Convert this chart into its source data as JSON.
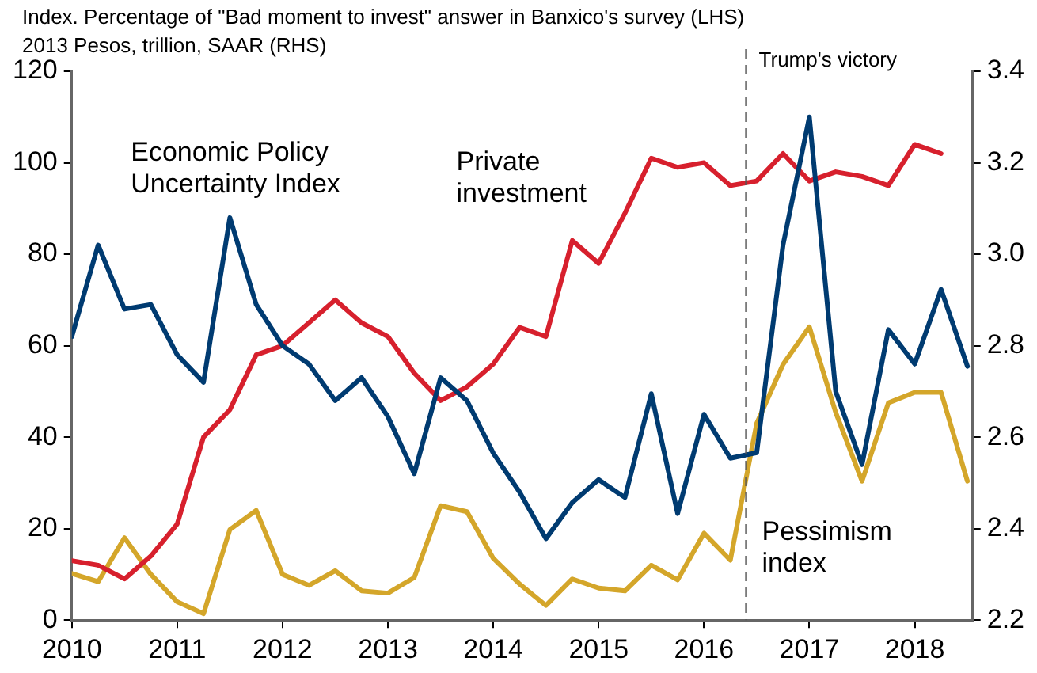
{
  "chart_data": {
    "type": "line",
    "annotations": [
      "Index. Percentage of \"Bad moment to invest\" answer in Banxico's survey (LHS)",
      "2013 Pesos, trillion, SAAR (RHS)"
    ],
    "x": [
      2010,
      2010.25,
      2010.5,
      2010.75,
      2011,
      2011.25,
      2011.5,
      2011.75,
      2012,
      2012.25,
      2012.5,
      2012.75,
      2013,
      2013.25,
      2013.5,
      2013.75,
      2014,
      2014.25,
      2014.5,
      2014.75,
      2015,
      2015.25,
      2015.5,
      2015.75,
      2016,
      2016.25,
      2016.5,
      2016.75,
      2017,
      2017.25,
      2017.5,
      2017.75,
      2018,
      2018.25,
      2018.5
    ],
    "series": [
      {
        "name": "Economic Policy Uncertainty Index",
        "color": "#003b71",
        "values": [
          62,
          82,
          68,
          69,
          58,
          52,
          88,
          69,
          60,
          56,
          48,
          53,
          44.5,
          32,
          53,
          48,
          36.5,
          28,
          17.8,
          25.7,
          30.7,
          26.8,
          49.5,
          23.3,
          45,
          35.4,
          36.6,
          82,
          110,
          50,
          34,
          63.5,
          56,
          72.3,
          55.5
        ]
      },
      {
        "name": "Private investment",
        "color": "#d7202d",
        "axis": "y2",
        "values": [
          2.33,
          2.32,
          2.29,
          2.34,
          2.41,
          2.6,
          2.66,
          2.78,
          2.8,
          2.85,
          2.9,
          2.85,
          2.82,
          2.74,
          2.68,
          2.71,
          2.76,
          2.84,
          2.82,
          3.03,
          2.98,
          3.09,
          3.21,
          3.19,
          3.2,
          3.15,
          3.16,
          3.22,
          3.16,
          3.18,
          3.17,
          3.15,
          3.24,
          3.22,
          null
        ]
      },
      {
        "name": "Pessimism index",
        "color": "#d4a62a",
        "values": [
          10.2,
          8.4,
          18,
          10,
          4,
          1.4,
          19.8,
          24,
          10,
          7.6,
          10.8,
          6.4,
          5.9,
          9.3,
          25,
          23.7,
          13.5,
          7.9,
          3.2,
          9,
          7,
          6.4,
          12,
          8.8,
          19,
          13.1,
          43,
          55.9,
          64.1,
          45.4,
          30.4,
          47.5,
          49.8,
          49.8,
          30.4
        ]
      }
    ],
    "xlim": [
      2010,
      2018.55
    ],
    "xticks": [
      2010,
      2011,
      2012,
      2013,
      2014,
      2015,
      2016,
      2017,
      2018
    ],
    "ylim": [
      0,
      120
    ],
    "yticks": [
      0,
      20,
      40,
      60,
      80,
      100,
      120
    ],
    "y2lim": [
      2.2,
      3.4
    ],
    "y2ticks": [
      2.2,
      2.4,
      2.6,
      2.8,
      {
        "value": 3,
        "label": "3.0"
      },
      3.2,
      3.4
    ],
    "ref_lines": [
      {
        "axis": "x",
        "value": 2016.4,
        "label": "Trump's victory",
        "line_style": "dashed",
        "color": "#555555"
      }
    ],
    "grid": false,
    "legend": false,
    "marker": "none",
    "line_style": "solid"
  }
}
